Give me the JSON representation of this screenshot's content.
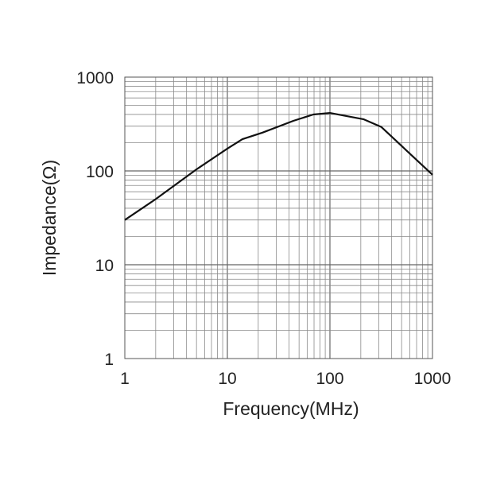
{
  "chart_data": {
    "type": "line",
    "title": "",
    "xlabel": "Frequency(MHz)",
    "ylabel": "Impedance(Ω)",
    "xscale": "log",
    "yscale": "log",
    "xlim": [
      1,
      1000
    ],
    "ylim": [
      1,
      1000
    ],
    "xticks": [
      "1",
      "10",
      "100",
      "1000"
    ],
    "yticks": [
      "1",
      "10",
      "100",
      "1000"
    ],
    "grid": true,
    "series": [
      {
        "name": "Impedance",
        "color": "#111111",
        "x": [
          1,
          2,
          5,
          10,
          14,
          22,
          44,
          69,
          100,
          214,
          316,
          1000
        ],
        "y": [
          30,
          50,
          104,
          173,
          218,
          256,
          342,
          400,
          415,
          355,
          295,
          91
        ]
      }
    ]
  }
}
